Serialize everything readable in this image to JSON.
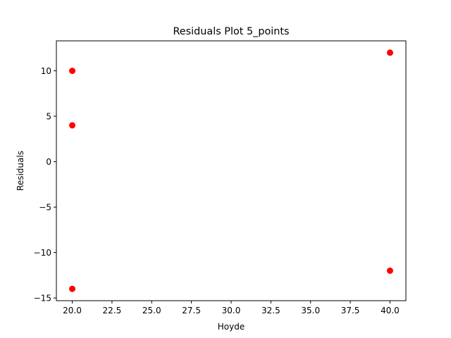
{
  "chart_data": {
    "type": "scatter",
    "title": "Residuals Plot 5_points",
    "xlabel": "Hoyde",
    "ylabel": "Residuals",
    "xlim": [
      19.0,
      41.0
    ],
    "ylim": [
      -15.3,
      13.3
    ],
    "x_ticks": [
      20.0,
      22.5,
      25.0,
      27.5,
      30.0,
      32.5,
      35.0,
      37.5,
      40.0
    ],
    "x_tick_labels": [
      "20.0",
      "22.5",
      "25.0",
      "27.5",
      "30.0",
      "32.5",
      "35.0",
      "37.5",
      "40.0"
    ],
    "y_ticks": [
      -15,
      -10,
      -5,
      0,
      5,
      10
    ],
    "y_tick_labels": [
      "−15",
      "−10",
      "−5",
      "0",
      "5",
      "10"
    ],
    "grid": false,
    "marker_color": "#ff0000",
    "points": [
      {
        "x": 20,
        "y": 10
      },
      {
        "x": 20,
        "y": 4
      },
      {
        "x": 20,
        "y": -14
      },
      {
        "x": 40,
        "y": 12
      },
      {
        "x": 40,
        "y": -12
      }
    ]
  }
}
